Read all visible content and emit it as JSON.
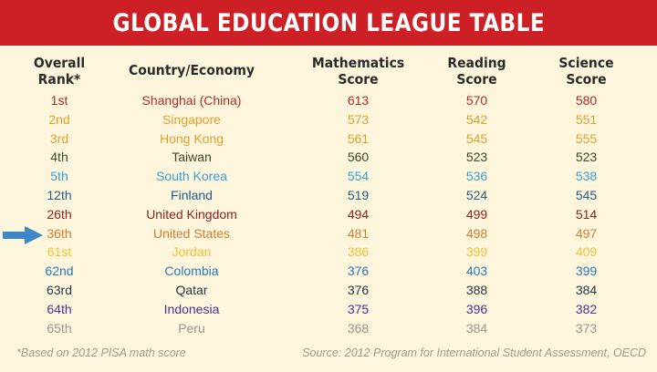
{
  "title": "GLOBAL EDUCATION LEAGUE TABLE",
  "columns": {
    "rank": [
      "Overall",
      "Rank*"
    ],
    "country": "Country/Economy",
    "math": [
      "Mathematics",
      "Score"
    ],
    "reading": [
      "Reading",
      "Score"
    ],
    "science": [
      "Science",
      "Score"
    ]
  },
  "highlight_marker": "arrow-right",
  "highlight_row": "United States",
  "chart_data": {
    "type": "table",
    "title": "GLOBAL EDUCATION LEAGUE TABLE",
    "columns": [
      "Overall Rank*",
      "Country/Economy",
      "Mathematics Score",
      "Reading Score",
      "Science Score"
    ],
    "rows": [
      {
        "rank": "1st",
        "country": "Shanghai (China)",
        "math": 613,
        "reading": 570,
        "science": 580,
        "color": "#b52a2a"
      },
      {
        "rank": "2nd",
        "country": "Singapore",
        "math": 573,
        "reading": 542,
        "science": 551,
        "color": "#e0a030"
      },
      {
        "rank": "3rd",
        "country": "Hong Kong",
        "math": 561,
        "reading": 545,
        "science": 555,
        "color": "#e0a030"
      },
      {
        "rank": "4th",
        "country": "Taiwan",
        "math": 560,
        "reading": 523,
        "science": 523,
        "color": "#3d4a2a"
      },
      {
        "rank": "5th",
        "country": "South Korea",
        "math": 554,
        "reading": 536,
        "science": 538,
        "color": "#3a9fd0"
      },
      {
        "rank": "12th",
        "country": "Finland",
        "math": 519,
        "reading": 524,
        "science": 545,
        "color": "#1e5e88"
      },
      {
        "rank": "26th",
        "country": "United Kingdom",
        "math": 494,
        "reading": 499,
        "science": 514,
        "color": "#8e2222"
      },
      {
        "rank": "36th",
        "country": "United States",
        "math": 481,
        "reading": 498,
        "science": 497,
        "color": "#d27d2e"
      },
      {
        "rank": "61st",
        "country": "Jordan",
        "math": 386,
        "reading": 399,
        "science": 409,
        "color": "#f0c237"
      },
      {
        "rank": "62nd",
        "country": "Colombia",
        "math": 376,
        "reading": 403,
        "science": 399,
        "color": "#2b78b8"
      },
      {
        "rank": "63rd",
        "country": "Qatar",
        "math": 376,
        "reading": 388,
        "science": 384,
        "color": "#253848"
      },
      {
        "rank": "64th",
        "country": "Indonesia",
        "math": 375,
        "reading": 396,
        "science": 382,
        "color": "#4b3590"
      },
      {
        "rank": "65th",
        "country": "Peru",
        "math": 368,
        "reading": 384,
        "science": 373,
        "color": "#9a958a"
      }
    ]
  },
  "footer": {
    "footnote": "*Based on 2012 PISA math score",
    "source": "Source: 2012 Program for International Student Assessment, OECD"
  },
  "colors": {
    "banner": "#cc1f26",
    "background": "#fdf5dc",
    "arrow": "#3f88c8"
  }
}
